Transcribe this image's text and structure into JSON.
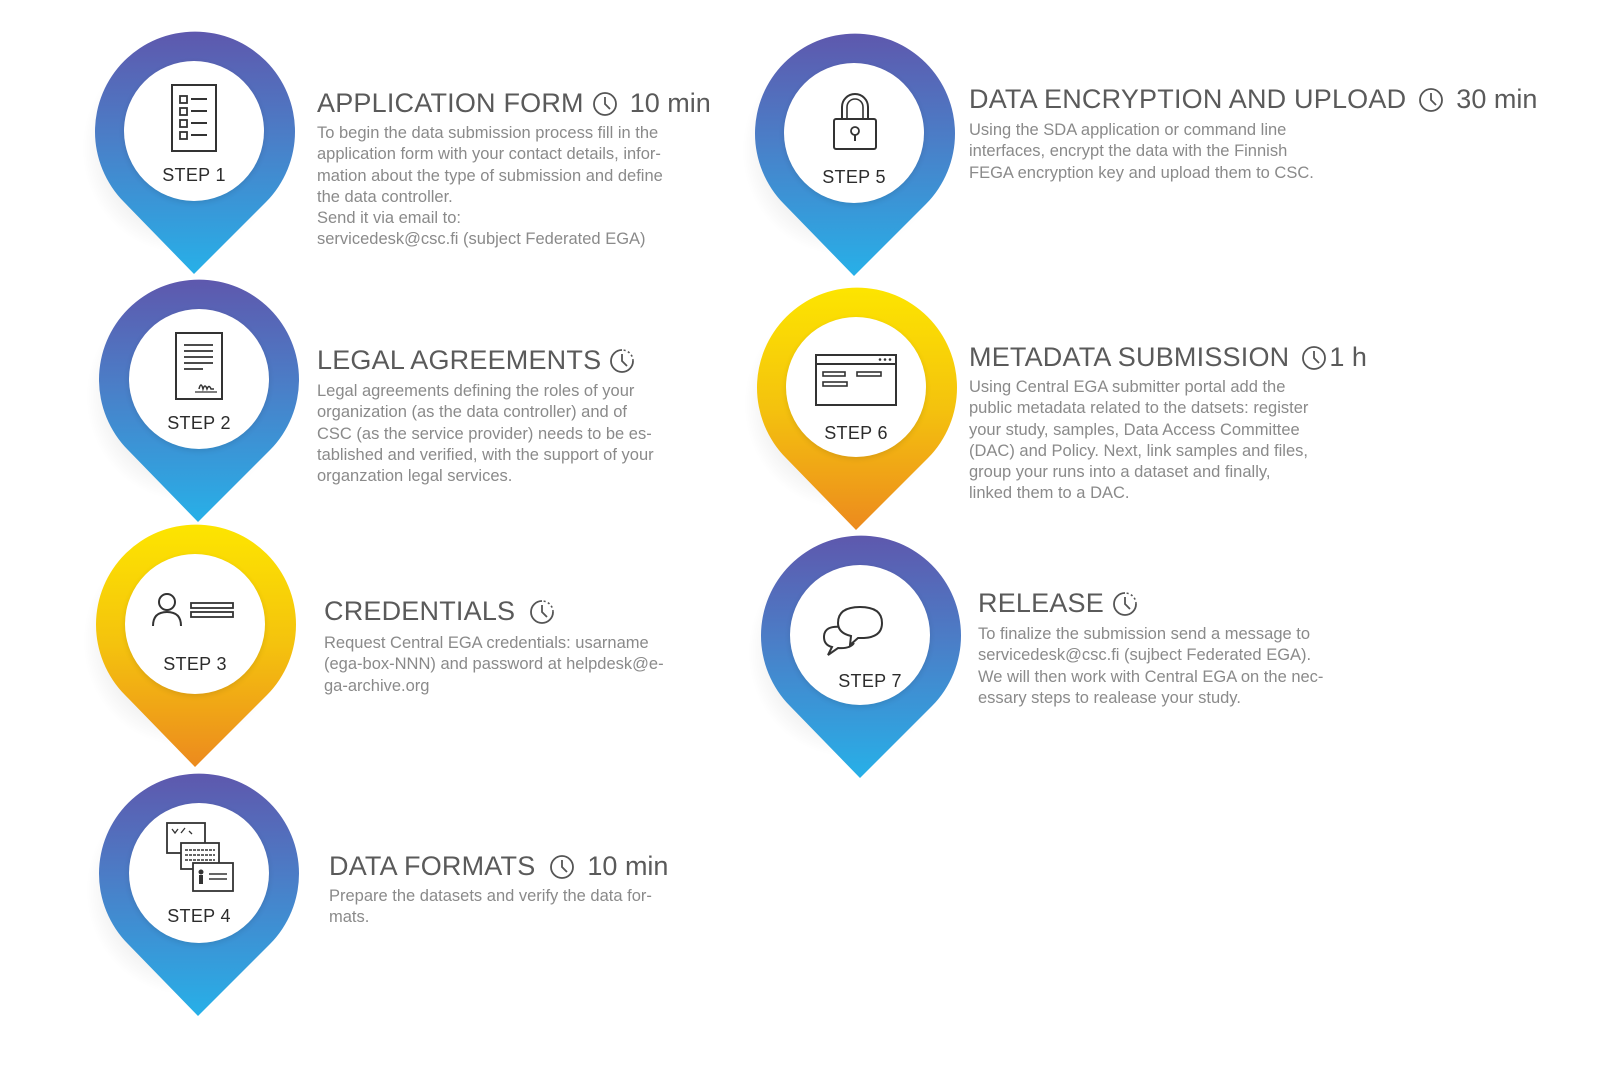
{
  "colors": {
    "blue_top": "#5b5bb0",
    "blue_bottom": "#29aee6",
    "yellow_top": "#fbe103",
    "yellow_bottom": "#ed8a1c",
    "title_text": "#5a5a5a",
    "body_text": "#8a8a8a"
  },
  "steps": [
    {
      "label": "STEP 1",
      "title": "APPLICATION FORM",
      "duration": "10 min",
      "theme": "blue",
      "icon": "checklist-form-icon",
      "lines": [
        "To begin the data submission process fill in the",
        "application form with your contact details, infor-",
        "mation about the type of submission and define",
        "the data controller.",
        "Send it via email to:",
        "servicedesk@csc.fi (subject Federated EGA)"
      ]
    },
    {
      "label": "STEP 2",
      "title": "LEGAL AGREEMENTS",
      "duration": "",
      "theme": "blue",
      "icon": "signed-document-icon",
      "lines": [
        "Legal agreements defining the roles of your",
        "organization (as the data controller)  and of",
        "CSC (as the service provider) needs to be  es-",
        "tablished and verified, with the support of your",
        "organzation legal services."
      ]
    },
    {
      "label": "STEP 3",
      "title": "CREDENTIALS",
      "duration": "",
      "theme": "yellow",
      "icon": "user-credentials-icon",
      "lines": [
        "Request Central EGA credentials: usarname",
        "(ega-box-NNN) and password at helpdesk@e-",
        "ga-archive.org"
      ]
    },
    {
      "label": "STEP 4",
      "title": "DATA FORMATS",
      "duration": "10 min",
      "theme": "blue",
      "icon": "data-files-icon",
      "lines": [
        "Prepare the datasets and verify the data for-",
        "mats."
      ]
    },
    {
      "label": "STEP 5",
      "title": "DATA ENCRYPTION AND UPLOAD",
      "duration": "30 min",
      "theme": "blue",
      "icon": "padlock-icon",
      "lines": [
        "Using the SDA application or command line",
        "interfaces, encrypt the data with the Finnish",
        "FEGA encryption key and upload them to CSC."
      ]
    },
    {
      "label": "STEP 6",
      "title": "METADATA SUBMISSION",
      "duration": "1 h",
      "theme": "yellow",
      "icon": "browser-window-icon",
      "lines": [
        "Using Central EGA submitter portal add the",
        "public metadata related to the datsets: register",
        "your study, samples, Data Access Committee",
        "(DAC) and Policy.  Next, link samples and files,",
        "group your runs into a dataset and finally,",
        "linked them to a DAC."
      ]
    },
    {
      "label": "STEP 7",
      "title": "RELEASE",
      "duration": "",
      "theme": "blue",
      "icon": "chat-bubbles-icon",
      "lines": [
        "To finalize the submission send a message to",
        "servicedesk@csc.fi (sujbect Federated EGA).",
        "We will then work with Central EGA on the nec-",
        "essary steps to realease your study."
      ]
    }
  ]
}
